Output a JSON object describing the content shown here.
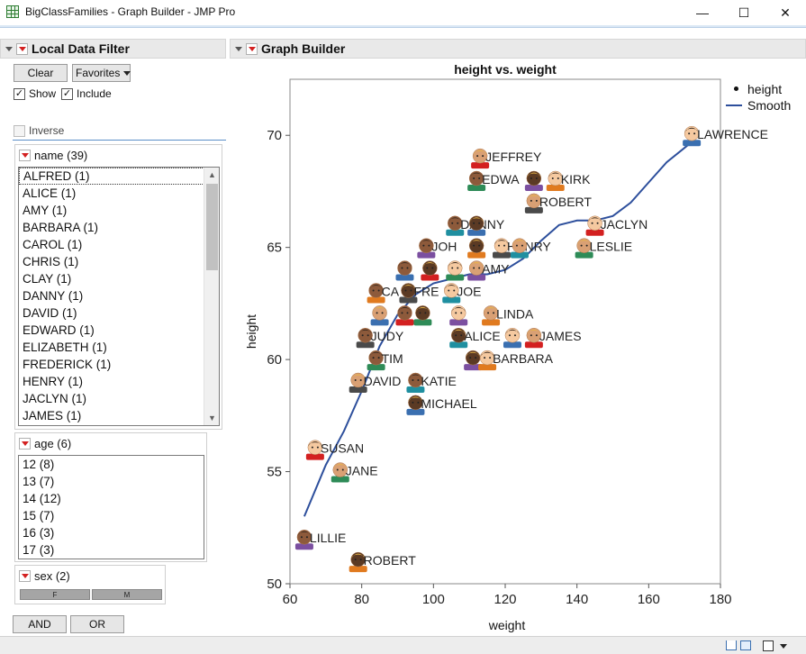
{
  "window": {
    "title": "BigClassFamilies - Graph Builder - JMP Pro",
    "icon": "data-table-grid-icon",
    "min_glyph": "—",
    "max_glyph": "☐",
    "close_glyph": "✕"
  },
  "local_data_filter": {
    "title": "Local Data Filter",
    "clear_label": "Clear",
    "favorites_label": "Favorites",
    "show_label": "Show",
    "include_label": "Include",
    "inverse_label": "Inverse",
    "show_checked": true,
    "include_checked": true,
    "inverse_checked": false,
    "name_filter": {
      "header": "name (39)",
      "items": [
        "ALFRED (1)",
        "ALICE (1)",
        "AMY (1)",
        "BARBARA (1)",
        "CAROL (1)",
        "CHRIS (1)",
        "CLAY (1)",
        "DANNY (1)",
        "DAVID (1)",
        "EDWARD (1)",
        "ELIZABETH (1)",
        "FREDERICK (1)",
        "HENRY (1)",
        "JACLYN (1)",
        "JAMES (1)"
      ]
    },
    "age_filter": {
      "header": "age (6)",
      "items": [
        "12 (8)",
        "13 (7)",
        "14 (12)",
        "15 (7)",
        "16 (3)",
        "17 (3)"
      ]
    },
    "sex_filter": {
      "header": "sex (2)",
      "levels": [
        "F",
        "M"
      ]
    },
    "and_label": "AND",
    "or_label": "OR"
  },
  "graph_builder": {
    "title": "Graph Builder",
    "legend": {
      "points_label": "height",
      "smooth_label": "Smooth"
    }
  },
  "colors": {
    "smooth_line": "#2d4f9c",
    "accent_red": "#d32020",
    "face_skin_tones": [
      "#f5c9a0",
      "#d9a074",
      "#8d5a3b",
      "#5b3a24"
    ],
    "hair_colors": [
      "#3a2a1e",
      "#7a4a1c",
      "#c65b21",
      "#e8b547",
      "#9a9a9a",
      "#222222"
    ]
  },
  "chart_data": {
    "type": "scatter",
    "title": "height vs. weight",
    "xlabel": "weight",
    "ylabel": "height",
    "xlim": [
      60,
      180
    ],
    "ylim": [
      50,
      72.5
    ],
    "xticks": [
      60,
      80,
      100,
      120,
      140,
      160,
      180
    ],
    "yticks": [
      50,
      55,
      60,
      65,
      70
    ],
    "grid": false,
    "legend_placement": "right",
    "point_style": "face-marker",
    "labels_shown": [
      "LAWRENCE",
      "JEFFREY",
      "EDWA",
      "KIRK",
      "ROBERT",
      "DANNY",
      "JACLYN",
      "LESLIE",
      "JOH",
      "HENRY",
      "AMY",
      "CA",
      "FRE",
      "JOE",
      "LINDA",
      "JUDY",
      "ALICE",
      "JAMES",
      "TIM",
      "BARBARA",
      "DAVID",
      "KATIE",
      "MICHAEL",
      "SUSAN",
      "JANE",
      "LILLIE",
      "ROBERT"
    ],
    "series": [
      {
        "name": "height",
        "points": [
          {
            "label": "LAWRENCE",
            "x": 172,
            "y": 70
          },
          {
            "label": "JEFFREY",
            "x": 113,
            "y": 69
          },
          {
            "label": "EDWA",
            "x": 112,
            "y": 68
          },
          {
            "label": "",
            "x": 128,
            "y": 68
          },
          {
            "label": "KIRK",
            "x": 134,
            "y": 68
          },
          {
            "label": "ROBERT",
            "x": 128,
            "y": 67
          },
          {
            "label": "DANNY",
            "x": 106,
            "y": 66
          },
          {
            "label": "",
            "x": 112,
            "y": 66
          },
          {
            "label": "JACLYN",
            "x": 145,
            "y": 66
          },
          {
            "label": "LESLIE",
            "x": 142,
            "y": 65
          },
          {
            "label": "JOH",
            "x": 98,
            "y": 65
          },
          {
            "label": "",
            "x": 112,
            "y": 65
          },
          {
            "label": "HENRY",
            "x": 119,
            "y": 65
          },
          {
            "label": "",
            "x": 124,
            "y": 65
          },
          {
            "label": "",
            "x": 92,
            "y": 64
          },
          {
            "label": "",
            "x": 99,
            "y": 64
          },
          {
            "label": "",
            "x": 106,
            "y": 64
          },
          {
            "label": "AMY",
            "x": 112,
            "y": 64
          },
          {
            "label": "CA",
            "x": 84,
            "y": 63
          },
          {
            "label": "FRE",
            "x": 93,
            "y": 63
          },
          {
            "label": "JOE",
            "x": 105,
            "y": 63
          },
          {
            "label": "",
            "x": 85,
            "y": 62
          },
          {
            "label": "",
            "x": 92,
            "y": 62
          },
          {
            "label": "",
            "x": 97,
            "y": 62
          },
          {
            "label": "",
            "x": 107,
            "y": 62
          },
          {
            "label": "LINDA",
            "x": 116,
            "y": 62
          },
          {
            "label": "JUDY",
            "x": 81,
            "y": 61
          },
          {
            "label": "ALICE",
            "x": 107,
            "y": 61
          },
          {
            "label": "",
            "x": 122,
            "y": 61
          },
          {
            "label": "JAMES",
            "x": 128,
            "y": 61
          },
          {
            "label": "TIM",
            "x": 84,
            "y": 60
          },
          {
            "label": "",
            "x": 111,
            "y": 60
          },
          {
            "label": "BARBARA",
            "x": 115,
            "y": 60
          },
          {
            "label": "DAVID",
            "x": 79,
            "y": 59
          },
          {
            "label": "KATIE",
            "x": 95,
            "y": 59
          },
          {
            "label": "MICHAEL",
            "x": 95,
            "y": 58
          },
          {
            "label": "SUSAN",
            "x": 67,
            "y": 56
          },
          {
            "label": "JANE",
            "x": 74,
            "y": 55
          },
          {
            "label": "LILLIE",
            "x": 64,
            "y": 52
          },
          {
            "label": "ROBERT",
            "x": 79,
            "y": 51
          }
        ]
      },
      {
        "name": "Smooth",
        "x": [
          64,
          70,
          75,
          80,
          85,
          90,
          95,
          100,
          105,
          110,
          115,
          120,
          125,
          130,
          135,
          140,
          145,
          150,
          155,
          160,
          165,
          172
        ],
        "y": [
          53.0,
          55.3,
          56.8,
          58.6,
          60.6,
          62.0,
          62.9,
          63.4,
          63.6,
          63.8,
          63.8,
          64.0,
          64.5,
          65.3,
          66.0,
          66.2,
          66.2,
          66.4,
          67.0,
          67.9,
          68.8,
          69.7
        ]
      }
    ]
  }
}
